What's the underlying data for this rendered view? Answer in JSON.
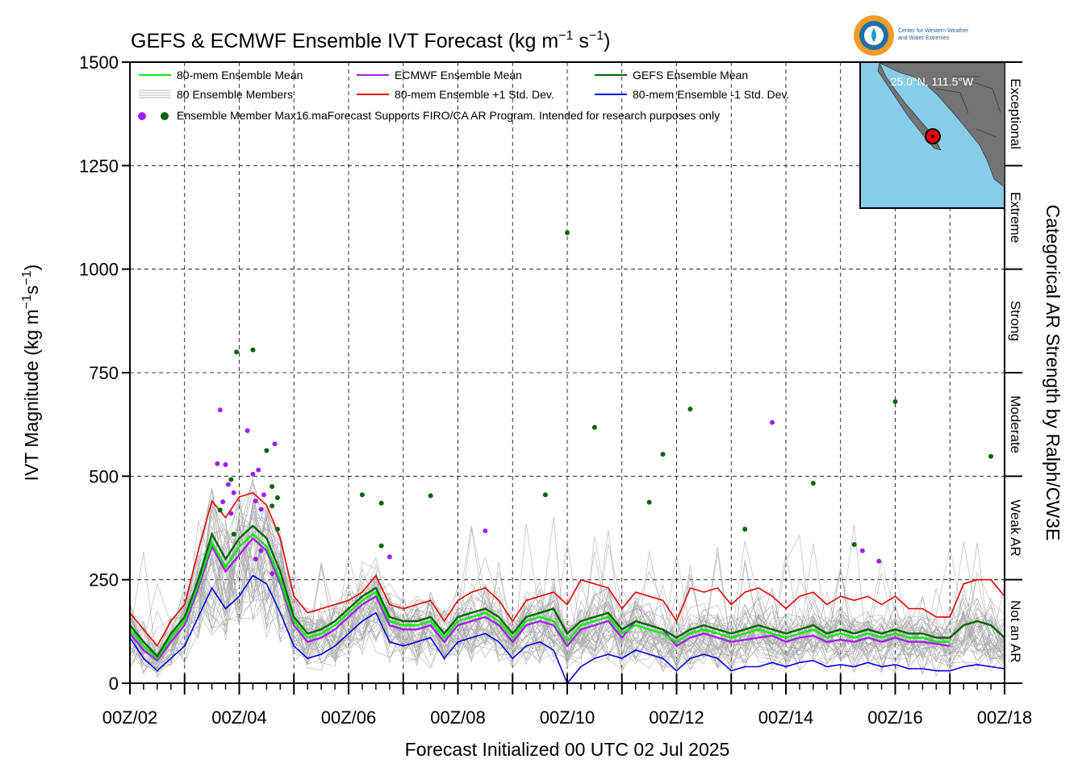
{
  "header": {
    "title": "GEFS & ECMWF Ensemble IVT Forecast (kg m",
    "title_exp1": "−1",
    "title_mid": " s",
    "title_exp2": "−1",
    "title_end": ")"
  },
  "logo": {
    "line1": "Center for Western Weather",
    "line2": "and Water Extremes"
  },
  "inset": {
    "label": "25.0°N, 111.5°W",
    "land_color": "#737373",
    "sea_color": "#87cdea"
  },
  "legend": {
    "items": [
      {
        "label": "80-mem Ensemble Mean",
        "color": "#00ee00"
      },
      {
        "label": "ECMWF Ensemble Mean",
        "color": "#a020f0"
      },
      {
        "label": "GEFS Ensemble Mean",
        "color": "#006400"
      },
      {
        "label": "80 Ensemble Members",
        "color": "#a9a9a9"
      },
      {
        "label": "80-mem Ensemble +1 Std. Dev.",
        "color": "#ee0000"
      },
      {
        "label": "80-mem Ensemble -1 Std. Dev.",
        "color": "#0000ee"
      }
    ],
    "max_label": "Ensemble Member Max",
    "note": "16.maForecast Supports FIRO/CA AR Program. Intended for research purposes only"
  },
  "right_axis": {
    "label": "Categorical AR Strength by Ralph/CW3E",
    "categories": [
      {
        "name": "Not an AR",
        "min": 0,
        "max": 250
      },
      {
        "name": "Weak AR",
        "min": 250,
        "max": 500
      },
      {
        "name": "Moderate",
        "min": 500,
        "max": 750
      },
      {
        "name": "Strong",
        "min": 750,
        "max": 1000
      },
      {
        "name": "Extreme",
        "min": 1000,
        "max": 1250
      },
      {
        "name": "Exceptional",
        "min": 1250,
        "max": 1500
      }
    ]
  },
  "chart_data": {
    "type": "line",
    "title": "GEFS & ECMWF Ensemble IVT Forecast (kg m−1 s−1)",
    "xlabel": "Forecast Initialized 00 UTC 02 Jul 2025",
    "ylabel": "IVT Magnitude (kg m−1s−1)",
    "ylim": [
      0,
      1500
    ],
    "yticks": [
      0,
      250,
      500,
      750,
      1000,
      1250,
      1500
    ],
    "xlim_days": [
      2,
      18
    ],
    "xtick_labels": [
      "00Z/02",
      "00Z/04",
      "00Z/06",
      "00Z/08",
      "00Z/10",
      "00Z/12",
      "00Z/14",
      "00Z/16",
      "00Z/18"
    ],
    "grid": true,
    "legend_position": "top-left",
    "series": [
      {
        "name": "80-mem Ensemble Mean",
        "color": "#00ee00",
        "x": [
          2.0,
          2.25,
          2.5,
          2.75,
          3.0,
          3.25,
          3.5,
          3.75,
          4.0,
          4.25,
          4.5,
          4.75,
          5.0,
          5.25,
          5.5,
          5.75,
          6.0,
          6.25,
          6.5,
          6.75,
          7.0,
          7.25,
          7.5,
          7.75,
          8.0,
          8.25,
          8.5,
          8.75,
          9.0,
          9.25,
          9.5,
          9.75,
          10.0,
          10.25,
          10.5,
          10.75,
          11.0,
          11.25,
          11.5,
          11.75,
          12.0,
          12.25,
          12.5,
          12.75,
          13.0,
          13.25,
          13.5,
          13.75,
          14.0,
          14.25,
          14.5,
          14.75,
          15.0,
          15.25,
          15.5,
          15.75,
          16.0,
          16.25,
          16.5,
          16.75,
          17.0
        ],
        "y": [
          130,
          90,
          60,
          110,
          150,
          240,
          340,
          280,
          330,
          360,
          330,
          250,
          150,
          110,
          120,
          140,
          170,
          200,
          220,
          150,
          140,
          140,
          150,
          110,
          150,
          160,
          170,
          150,
          110,
          150,
          160,
          150,
          100,
          140,
          150,
          160,
          120,
          140,
          130,
          120,
          100,
          120,
          130,
          120,
          110,
          120,
          130,
          120,
          110,
          120,
          130,
          110,
          120,
          110,
          120,
          110,
          120,
          110,
          110,
          100,
          100
        ]
      },
      {
        "name": "ECMWF Ensemble Mean",
        "color": "#a020f0",
        "x": [
          2.0,
          2.25,
          2.5,
          2.75,
          3.0,
          3.25,
          3.5,
          3.75,
          4.0,
          4.25,
          4.5,
          4.75,
          5.0,
          5.25,
          5.5,
          5.75,
          6.0,
          6.25,
          6.5,
          6.75,
          7.0,
          7.25,
          7.5,
          7.75,
          8.0,
          8.25,
          8.5,
          8.75,
          9.0,
          9.25,
          9.5,
          9.75,
          10.0,
          10.25,
          10.5,
          10.75,
          11.0,
          11.25,
          11.5,
          11.75,
          12.0,
          12.25,
          12.5,
          12.75,
          13.0,
          13.25,
          13.5,
          13.75,
          14.0,
          14.25,
          14.5,
          14.75,
          15.0,
          15.25,
          15.5,
          15.75,
          16.0,
          16.25,
          16.5,
          16.75,
          17.0
        ],
        "y": [
          120,
          80,
          55,
          100,
          140,
          230,
          330,
          270,
          310,
          350,
          320,
          240,
          140,
          100,
          110,
          130,
          160,
          190,
          210,
          140,
          130,
          130,
          140,
          100,
          140,
          150,
          160,
          140,
          100,
          140,
          150,
          140,
          90,
          130,
          140,
          150,
          110,
          150,
          140,
          130,
          90,
          110,
          120,
          110,
          100,
          105,
          110,
          115,
          100,
          110,
          115,
          100,
          105,
          100,
          110,
          100,
          110,
          100,
          100,
          95,
          90
        ]
      },
      {
        "name": "GEFS Ensemble Mean",
        "color": "#006400",
        "x": [
          2.0,
          2.25,
          2.5,
          2.75,
          3.0,
          3.25,
          3.5,
          3.75,
          4.0,
          4.25,
          4.5,
          4.75,
          5.0,
          5.25,
          5.5,
          5.75,
          6.0,
          6.25,
          6.5,
          6.75,
          7.0,
          7.25,
          7.5,
          7.75,
          8.0,
          8.25,
          8.5,
          8.75,
          9.0,
          9.25,
          9.5,
          9.75,
          10.0,
          10.25,
          10.5,
          10.75,
          11.0,
          11.25,
          11.5,
          11.75,
          12.0,
          12.25,
          12.5,
          12.75,
          13.0,
          13.25,
          13.5,
          13.75,
          14.0,
          14.25,
          14.5,
          14.75,
          15.0,
          15.25,
          15.5,
          15.75,
          16.0,
          16.25,
          16.5,
          16.75,
          17.0,
          17.25,
          17.5,
          17.75,
          18.0
        ],
        "y": [
          140,
          100,
          65,
          120,
          160,
          250,
          360,
          300,
          350,
          380,
          350,
          270,
          160,
          120,
          130,
          150,
          180,
          210,
          230,
          160,
          150,
          150,
          160,
          120,
          160,
          170,
          180,
          160,
          120,
          160,
          170,
          180,
          120,
          150,
          160,
          170,
          130,
          150,
          140,
          130,
          110,
          130,
          140,
          130,
          120,
          130,
          140,
          130,
          120,
          130,
          140,
          120,
          130,
          120,
          130,
          120,
          130,
          120,
          120,
          110,
          110,
          140,
          150,
          140,
          110
        ]
      },
      {
        "name": "80-mem Ensemble +1 Std. Dev.",
        "color": "#ee0000",
        "x": [
          2.0,
          2.25,
          2.5,
          2.75,
          3.0,
          3.25,
          3.5,
          3.75,
          4.0,
          4.25,
          4.5,
          4.75,
          5.0,
          5.25,
          5.5,
          5.75,
          6.0,
          6.25,
          6.5,
          6.75,
          7.0,
          7.25,
          7.5,
          7.75,
          8.0,
          8.25,
          8.5,
          8.75,
          9.0,
          9.25,
          9.5,
          9.75,
          10.0,
          10.25,
          10.5,
          10.75,
          11.0,
          11.25,
          11.5,
          11.75,
          12.0,
          12.25,
          12.5,
          12.75,
          13.0,
          13.25,
          13.5,
          13.75,
          14.0,
          14.25,
          14.5,
          14.75,
          15.0,
          15.25,
          15.5,
          15.75,
          16.0,
          16.25,
          16.5,
          16.75,
          17.0,
          17.25,
          17.5,
          17.75,
          18.0
        ],
        "y": [
          170,
          130,
          90,
          150,
          190,
          320,
          440,
          400,
          450,
          460,
          430,
          350,
          210,
          170,
          180,
          190,
          200,
          220,
          260,
          190,
          180,
          190,
          200,
          150,
          200,
          220,
          230,
          200,
          150,
          200,
          210,
          220,
          190,
          250,
          240,
          230,
          180,
          220,
          210,
          200,
          150,
          230,
          220,
          230,
          190,
          220,
          230,
          210,
          180,
          210,
          220,
          190,
          210,
          200,
          210,
          190,
          210,
          180,
          180,
          160,
          160,
          240,
          250,
          250,
          210
        ]
      },
      {
        "name": "80-mem Ensemble -1 Std. Dev.",
        "color": "#0000ee",
        "x": [
          2.0,
          2.25,
          2.5,
          2.75,
          3.0,
          3.25,
          3.5,
          3.75,
          4.0,
          4.25,
          4.5,
          4.75,
          5.0,
          5.25,
          5.5,
          5.75,
          6.0,
          6.25,
          6.5,
          6.75,
          7.0,
          7.25,
          7.5,
          7.75,
          8.0,
          8.25,
          8.5,
          8.75,
          9.0,
          9.25,
          9.5,
          9.75,
          10.0,
          10.25,
          10.5,
          10.75,
          11.0,
          11.25,
          11.5,
          11.75,
          12.0,
          12.25,
          12.5,
          12.75,
          13.0,
          13.25,
          13.5,
          13.75,
          14.0,
          14.25,
          14.5,
          14.75,
          15.0,
          15.25,
          15.5,
          15.75,
          16.0,
          16.25,
          16.5,
          16.75,
          17.0,
          17.25,
          17.5,
          17.75,
          18.0
        ],
        "y": [
          110,
          60,
          30,
          60,
          90,
          160,
          230,
          180,
          210,
          260,
          240,
          170,
          90,
          60,
          70,
          90,
          120,
          150,
          170,
          100,
          90,
          100,
          110,
          60,
          100,
          110,
          120,
          100,
          60,
          90,
          100,
          80,
          0,
          40,
          60,
          70,
          60,
          80,
          70,
          60,
          30,
          60,
          70,
          60,
          30,
          40,
          40,
          50,
          40,
          50,
          55,
          40,
          45,
          40,
          50,
          40,
          45,
          35,
          35,
          30,
          30,
          40,
          45,
          40,
          35
        ]
      }
    ],
    "member_max_points": [
      {
        "x": 3.65,
        "y": 660,
        "model": "ECMWF"
      },
      {
        "x": 3.75,
        "y": 528,
        "model": "ECMWF"
      },
      {
        "x": 3.6,
        "y": 530,
        "model": "ECMWF"
      },
      {
        "x": 3.7,
        "y": 438,
        "model": "ECMWF"
      },
      {
        "x": 3.8,
        "y": 480,
        "model": "ECMWF"
      },
      {
        "x": 3.85,
        "y": 410,
        "model": "ECMWF"
      },
      {
        "x": 3.9,
        "y": 460,
        "model": "ECMWF"
      },
      {
        "x": 4.15,
        "y": 610,
        "model": "ECMWF"
      },
      {
        "x": 4.25,
        "y": 505,
        "model": "ECMWF"
      },
      {
        "x": 4.3,
        "y": 440,
        "model": "ECMWF"
      },
      {
        "x": 4.35,
        "y": 515,
        "model": "ECMWF"
      },
      {
        "x": 4.4,
        "y": 420,
        "model": "ECMWF"
      },
      {
        "x": 4.45,
        "y": 455,
        "model": "ECMWF"
      },
      {
        "x": 4.3,
        "y": 300,
        "model": "ECMWF"
      },
      {
        "x": 4.4,
        "y": 320,
        "model": "ECMWF"
      },
      {
        "x": 4.65,
        "y": 578,
        "model": "ECMWF"
      },
      {
        "x": 4.6,
        "y": 265,
        "model": "ECMWF"
      },
      {
        "x": 6.75,
        "y": 305,
        "model": "ECMWF"
      },
      {
        "x": 8.5,
        "y": 368,
        "model": "ECMWF"
      },
      {
        "x": 13.75,
        "y": 630,
        "model": "ECMWF"
      },
      {
        "x": 15.4,
        "y": 320,
        "model": "ECMWF"
      },
      {
        "x": 15.7,
        "y": 295,
        "model": "ECMWF"
      },
      {
        "x": 3.95,
        "y": 800,
        "model": "GEFS"
      },
      {
        "x": 4.25,
        "y": 805,
        "model": "GEFS"
      },
      {
        "x": 3.85,
        "y": 492,
        "model": "GEFS"
      },
      {
        "x": 3.65,
        "y": 418,
        "model": "GEFS"
      },
      {
        "x": 3.9,
        "y": 360,
        "model": "GEFS"
      },
      {
        "x": 4.5,
        "y": 562,
        "model": "GEFS"
      },
      {
        "x": 4.6,
        "y": 475,
        "model": "GEFS"
      },
      {
        "x": 4.7,
        "y": 448,
        "model": "GEFS"
      },
      {
        "x": 4.6,
        "y": 428,
        "model": "GEFS"
      },
      {
        "x": 4.7,
        "y": 372,
        "model": "GEFS"
      },
      {
        "x": 6.25,
        "y": 455,
        "model": "GEFS"
      },
      {
        "x": 6.6,
        "y": 435,
        "model": "GEFS"
      },
      {
        "x": 6.6,
        "y": 332,
        "model": "GEFS"
      },
      {
        "x": 7.5,
        "y": 453,
        "model": "GEFS"
      },
      {
        "x": 9.6,
        "y": 455,
        "model": "GEFS"
      },
      {
        "x": 10.0,
        "y": 1088,
        "model": "GEFS"
      },
      {
        "x": 10.5,
        "y": 618,
        "model": "GEFS"
      },
      {
        "x": 11.5,
        "y": 437,
        "model": "GEFS"
      },
      {
        "x": 11.75,
        "y": 553,
        "model": "GEFS"
      },
      {
        "x": 12.25,
        "y": 662,
        "model": "GEFS"
      },
      {
        "x": 13.25,
        "y": 372,
        "model": "GEFS"
      },
      {
        "x": 14.5,
        "y": 483,
        "model": "GEFS"
      },
      {
        "x": 15.25,
        "y": 335,
        "model": "GEFS"
      },
      {
        "x": 16.0,
        "y": 680,
        "model": "GEFS"
      },
      {
        "x": 17.75,
        "y": 548,
        "model": "GEFS"
      }
    ],
    "member_colors": {
      "ECMWF": "#a020f0",
      "GEFS": "#006400",
      "members": "#a9a9a9"
    }
  }
}
